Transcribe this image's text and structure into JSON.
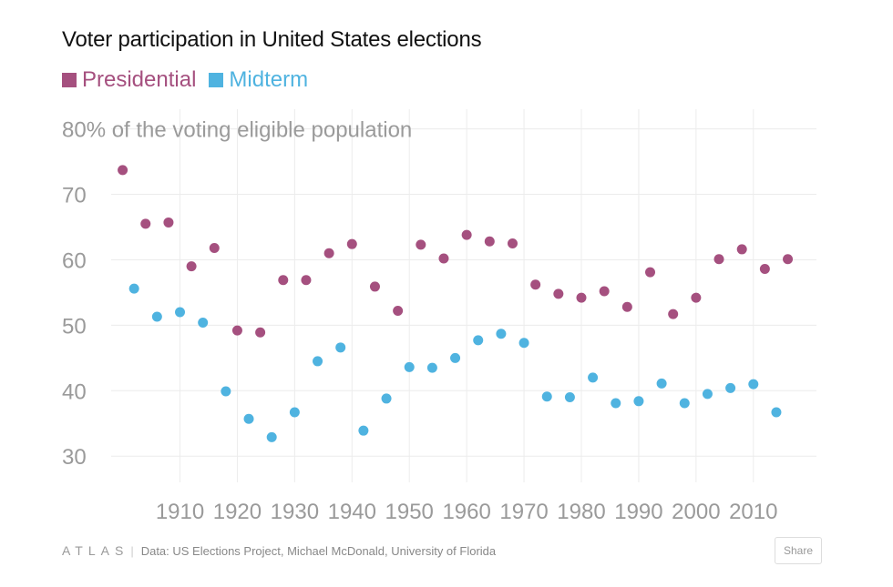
{
  "chart_data": {
    "type": "scatter",
    "title": "Voter participation in United States elections",
    "ylabel": "% of the voting eligible population",
    "xlabel": "",
    "ylim": [
      26,
      83
    ],
    "xlim": [
      1898,
      2021
    ],
    "yticks": [
      30,
      40,
      50,
      60,
      70,
      80
    ],
    "ytick_labels": [
      "30",
      "40",
      "50",
      "60",
      "70",
      "80% of the voting eligible population"
    ],
    "xticks": [
      1910,
      1920,
      1930,
      1940,
      1950,
      1960,
      1970,
      1980,
      1990,
      2000,
      2010
    ],
    "xtick_labels": [
      "1910",
      "1920",
      "1930",
      "1940",
      "1950",
      "1960",
      "1970",
      "1980",
      "1990",
      "2000",
      "2010"
    ],
    "grid": true,
    "legend": "top-left",
    "series": [
      {
        "name": "Presidential",
        "color": "#a5507f",
        "points": [
          [
            1900,
            73.7
          ],
          [
            1904,
            65.5
          ],
          [
            1908,
            65.7
          ],
          [
            1912,
            59.0
          ],
          [
            1916,
            61.8
          ],
          [
            1920,
            49.2
          ],
          [
            1924,
            48.9
          ],
          [
            1928,
            56.9
          ],
          [
            1932,
            56.9
          ],
          [
            1936,
            61.0
          ],
          [
            1940,
            62.4
          ],
          [
            1944,
            55.9
          ],
          [
            1948,
            52.2
          ],
          [
            1952,
            62.3
          ],
          [
            1956,
            60.2
          ],
          [
            1960,
            63.8
          ],
          [
            1964,
            62.8
          ],
          [
            1968,
            62.5
          ],
          [
            1972,
            56.2
          ],
          [
            1976,
            54.8
          ],
          [
            1980,
            54.2
          ],
          [
            1984,
            55.2
          ],
          [
            1988,
            52.8
          ],
          [
            1992,
            58.1
          ],
          [
            1996,
            51.7
          ],
          [
            2000,
            54.2
          ],
          [
            2004,
            60.1
          ],
          [
            2008,
            61.6
          ],
          [
            2012,
            58.6
          ],
          [
            2016,
            60.1
          ]
        ]
      },
      {
        "name": "Midterm",
        "color": "#4fb3e0",
        "points": [
          [
            1902,
            55.6
          ],
          [
            1906,
            51.3
          ],
          [
            1910,
            52.0
          ],
          [
            1914,
            50.4
          ],
          [
            1918,
            39.9
          ],
          [
            1922,
            35.7
          ],
          [
            1926,
            32.9
          ],
          [
            1930,
            36.7
          ],
          [
            1934,
            44.5
          ],
          [
            1938,
            46.6
          ],
          [
            1942,
            33.9
          ],
          [
            1946,
            38.8
          ],
          [
            1950,
            43.6
          ],
          [
            1954,
            43.5
          ],
          [
            1958,
            45.0
          ],
          [
            1962,
            47.7
          ],
          [
            1966,
            48.7
          ],
          [
            1970,
            47.3
          ],
          [
            1974,
            39.1
          ],
          [
            1978,
            39.0
          ],
          [
            1982,
            42.0
          ],
          [
            1986,
            38.1
          ],
          [
            1990,
            38.4
          ],
          [
            1994,
            41.1
          ],
          [
            1998,
            38.1
          ],
          [
            2002,
            39.5
          ],
          [
            2006,
            40.4
          ],
          [
            2010,
            41.0
          ],
          [
            2014,
            36.7
          ]
        ]
      }
    ]
  },
  "footer": {
    "brand": "ATLAS",
    "separator": "|",
    "source": "Data: US Elections Project, Michael McDonald, University of Florida"
  },
  "share_label": "Share"
}
